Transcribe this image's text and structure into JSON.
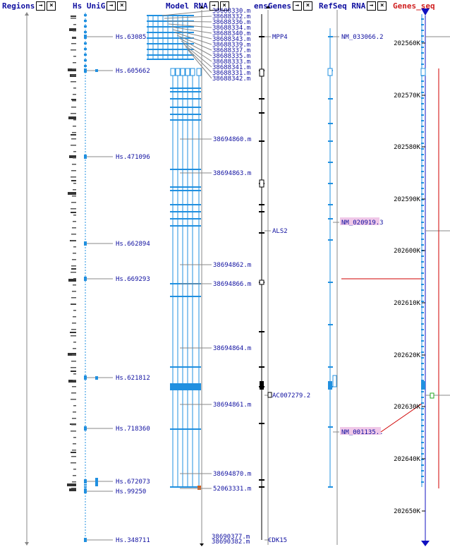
{
  "tracks": [
    {
      "id": "regions",
      "title": "Regions",
      "red": false
    },
    {
      "id": "unigene",
      "title": "Hs UniG",
      "red": false
    },
    {
      "id": "model",
      "title": "Model RNA",
      "red": false
    },
    {
      "id": "ensgenes",
      "title": "ensGenes",
      "red": false
    },
    {
      "id": "refseq",
      "title": "RefSeq RNA",
      "red": false
    },
    {
      "id": "genesseq",
      "title": "Genes_seq",
      "red": true
    }
  ],
  "buttons": {
    "expand": "→",
    "close": "×"
  },
  "colors": {
    "feature": "#2090e0",
    "link": "#1010a0",
    "axis": "#888888",
    "red": "#d00000",
    "highlight": "#f0c8e8"
  },
  "unigene_labels": [
    "Hs.63085",
    "Hs.605662",
    "Hs.471096",
    "Hs.662894",
    "Hs.669293",
    "Hs.621812",
    "Hs.718360",
    "Hs.672073",
    "Hs.99250",
    "Hs.348711"
  ],
  "model_labels_top": [
    "38688330.m",
    "38688332.m",
    "38688336.m",
    "38688334.m",
    "38688340.m",
    "38688343.m",
    "38688339.m",
    "38688337.m",
    "38688335.m",
    "38688333.m",
    "38688341.m",
    "38688331.m",
    "38688342.m"
  ],
  "model_labels_mid": [
    "38694860.m",
    "38694863.m",
    "38694862.m",
    "38694866.m",
    "38694864.m",
    "38694861.m",
    "38694870.m",
    "52063331.m"
  ],
  "model_labels_bottom": [
    "38690377.m",
    "38690382.m"
  ],
  "ens_labels": [
    "MPP4",
    "ALS2",
    "AC007279.2",
    "CDK15"
  ],
  "refseq_labels": [
    "NM_033066.2",
    "NM_020919.3",
    "NM_001135.."
  ],
  "ruler_labels": [
    "202560K",
    "202570K",
    "202580K",
    "202590K",
    "202600K",
    "202610K",
    "202620K",
    "202630K",
    "202640K",
    "202650K"
  ]
}
